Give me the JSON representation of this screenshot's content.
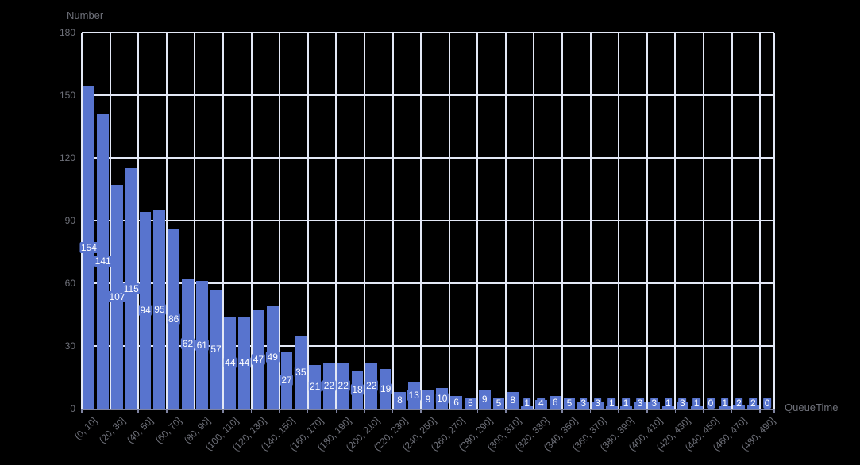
{
  "chart_data": {
    "type": "bar",
    "title": "",
    "ylabel": "Number",
    "xlabel": "QueueTime",
    "ylim": [
      0,
      180
    ],
    "y_ticks": [
      0,
      30,
      60,
      90,
      120,
      150,
      180
    ],
    "grid": true,
    "legend": false,
    "bin_width": 10,
    "bins": [
      "(0, 10]",
      "(10, 20]",
      "(20, 30]",
      "(30, 40]",
      "(40, 50]",
      "(50, 60]",
      "(60, 70]",
      "(70, 80]",
      "(80, 90]",
      "(90, 100]",
      "(100, 110]",
      "(110, 120]",
      "(120, 130]",
      "(130, 140]",
      "(140, 150]",
      "(150, 160]",
      "(160, 170]",
      "(170, 180]",
      "(180, 190]",
      "(190, 200]",
      "(200, 210]",
      "(210, 220]",
      "(220, 230]",
      "(230, 240]",
      "(240, 250]",
      "(250, 260]",
      "(260, 270]",
      "(270, 280]",
      "(280, 290]",
      "(290, 300]",
      "(300, 310]",
      "(310, 320]",
      "(320, 330]",
      "(330, 340]",
      "(340, 350]",
      "(350, 360]",
      "(360, 370]",
      "(370, 380]",
      "(380, 390]",
      "(390, 400]",
      "(400, 410]",
      "(410, 420]",
      "(420, 430]",
      "(430, 440]",
      "(440, 450]",
      "(450, 460]",
      "(460, 470]",
      "(470, 480]",
      "(480, 490]"
    ],
    "values": [
      154,
      141,
      107,
      115,
      94,
      95,
      86,
      62,
      61,
      57,
      44,
      44,
      47,
      49,
      27,
      35,
      21,
      22,
      22,
      18,
      22,
      19,
      8,
      13,
      9,
      10,
      6,
      5,
      9,
      5,
      8,
      1,
      4,
      6,
      5,
      3,
      3,
      1,
      1,
      3,
      3,
      1,
      3,
      1,
      0,
      1,
      2,
      2,
      0
    ],
    "x_tick_labels": [
      "(0, 10]",
      "(20, 30]",
      "(40, 50]",
      "(60, 70]",
      "(80, 90]",
      "(100, 110]",
      "(120, 130]",
      "(140, 150]",
      "(160, 170]",
      "(180, 190]",
      "(200, 210]",
      "(220, 230]",
      "(240, 250]",
      "(260, 270]",
      "(280, 290]",
      "(300, 310]",
      "(320, 330]",
      "(340, 350]",
      "(360, 370]",
      "(380, 390]",
      "(400, 410]",
      "(420, 430]",
      "(440, 450]",
      "(460, 470]",
      "(480, 490]"
    ],
    "x_tick_step_units": 20,
    "colors": {
      "background": "#000000",
      "bar": "#5874CE",
      "gridline": "#E3E8F6",
      "axis_line": "#7E83A0",
      "text": "#6E7079",
      "value_label_text": "#FFFFFF"
    }
  }
}
